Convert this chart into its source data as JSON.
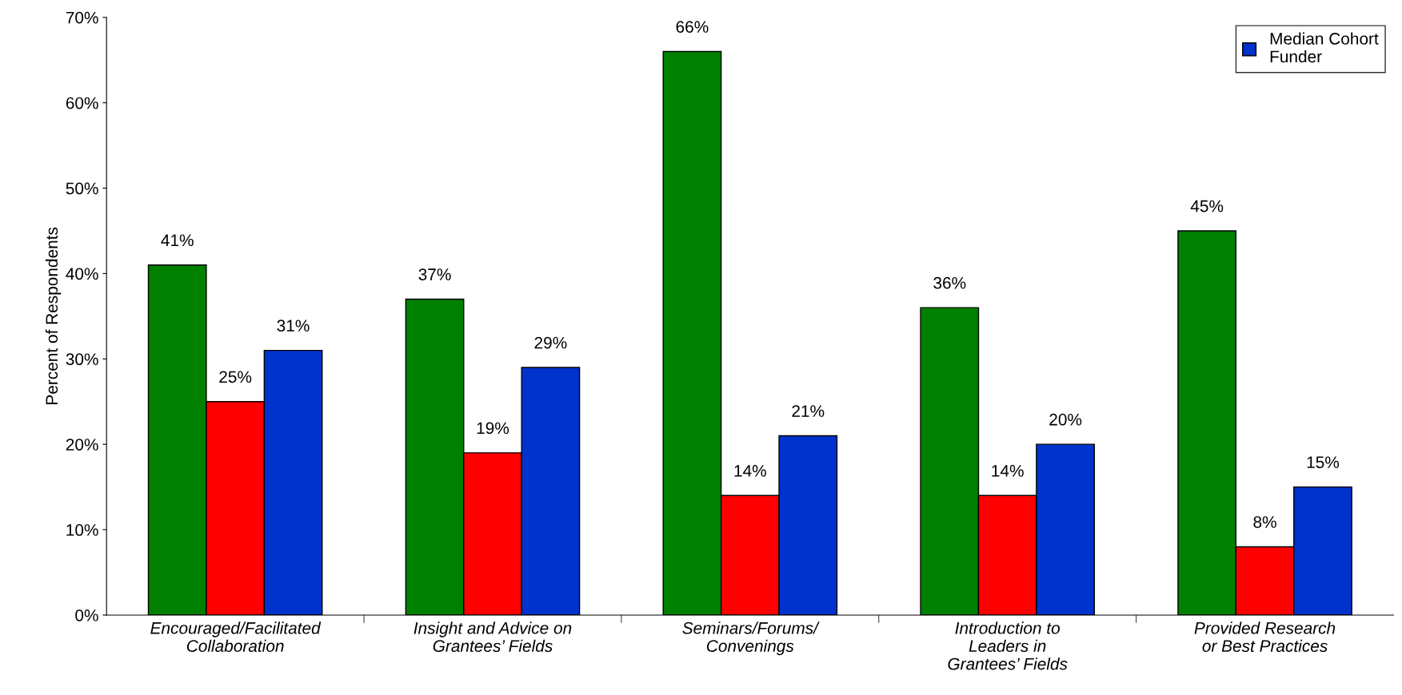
{
  "chart_data": {
    "type": "bar",
    "ylabel": "Percent of Respondents",
    "categories": [
      "Encouraged/Facilitated\nCollaboration",
      "Insight and Advice on\nGrantees’ Fields",
      "Seminars/Forums/\nConvenings",
      "Introduction to\nLeaders in\nGrantees’ Fields",
      "Provided Research\nor Best Practices"
    ],
    "series": [
      {
        "color": "#008000",
        "values": [
          41,
          37,
          66,
          36,
          45
        ],
        "value_labels": [
          "41%",
          "37%",
          "66%",
          "36%",
          "45%"
        ]
      },
      {
        "color": "#ff0000",
        "values": [
          25,
          19,
          14,
          14,
          8
        ],
        "value_labels": [
          "25%",
          "19%",
          "14%",
          "14%",
          "8%"
        ]
      },
      {
        "name": "Median Cohort\nFunder",
        "color": "#0033cc",
        "values": [
          31,
          29,
          21,
          20,
          15
        ],
        "value_labels": [
          "31%",
          "29%",
          "21%",
          "20%",
          "15%"
        ]
      }
    ],
    "ylim": [
      0,
      70
    ],
    "yticks": [
      {
        "value": 0,
        "label": "0%"
      },
      {
        "value": 10,
        "label": "10%"
      },
      {
        "value": 20,
        "label": "20%"
      },
      {
        "value": 30,
        "label": "30%"
      },
      {
        "value": 40,
        "label": "40%"
      },
      {
        "value": 50,
        "label": "50%"
      },
      {
        "value": 60,
        "label": "60%"
      },
      {
        "value": 70,
        "label": "70%"
      }
    ],
    "grid": false,
    "legend": "top right"
  }
}
